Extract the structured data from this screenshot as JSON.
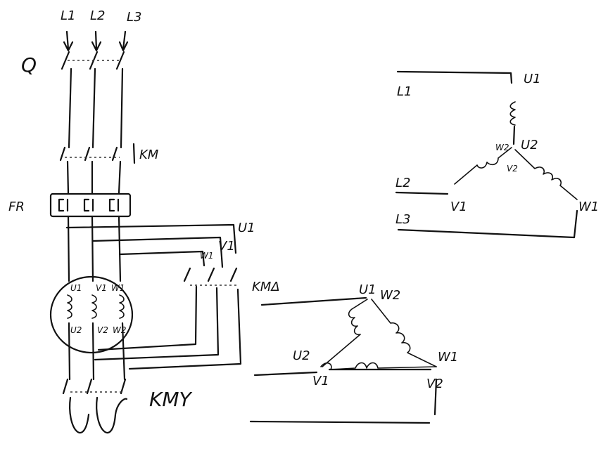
{
  "labels": {
    "supply": {
      "l1": "L1",
      "l2": "L2",
      "l3": "L3"
    },
    "switch_q": "Q",
    "contactor_km": "KM",
    "relay_fr": "FR",
    "contactor_km_delta": "KMΔ",
    "contactor_km_y": "KMY",
    "motor": {
      "u1": "U1",
      "v1": "V1",
      "w1": "W1",
      "u2": "U2",
      "v2": "V2",
      "w2": "W2"
    },
    "delta_side": {
      "u1": "U1",
      "v1": "V1",
      "w1": "W1"
    },
    "star_diagram": {
      "l1": "L1",
      "l2": "L2",
      "l3": "L3",
      "u1": "U1",
      "u2": "U2",
      "w2": "W2",
      "v2": "V2",
      "v1": "V1",
      "w1": "W1"
    },
    "delta_diagram": {
      "u1": "U1",
      "w2": "W2",
      "u2": "U2",
      "w1": "W1",
      "v1": "V1",
      "v2": "V2"
    }
  }
}
